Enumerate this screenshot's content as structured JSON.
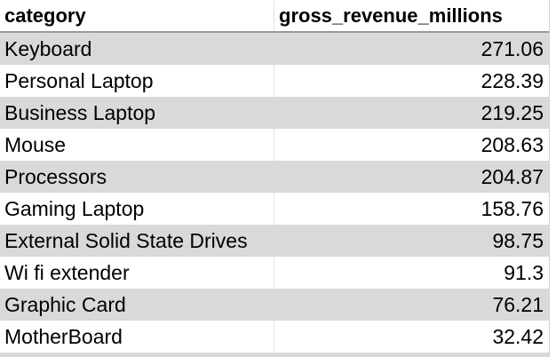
{
  "table": {
    "headers": [
      "category",
      "gross_revenue_millions"
    ],
    "rows": [
      {
        "category": "Keyboard",
        "value": "271.06"
      },
      {
        "category": "Personal Laptop",
        "value": "228.39"
      },
      {
        "category": "Business Laptop",
        "value": "219.25"
      },
      {
        "category": "Mouse",
        "value": "208.63"
      },
      {
        "category": "Processors",
        "value": "204.87"
      },
      {
        "category": "Gaming Laptop",
        "value": "158.76"
      },
      {
        "category": "External Solid State Drives",
        "value": "98.75"
      },
      {
        "category": "Wi fi extender",
        "value": "91.3"
      },
      {
        "category": "Graphic Card",
        "value": "76.21"
      },
      {
        "category": "MotherBoard",
        "value": "32.42"
      }
    ]
  },
  "colors": {
    "shaded_row": "#d9d9d9",
    "header_border": "#9a9a9a"
  }
}
